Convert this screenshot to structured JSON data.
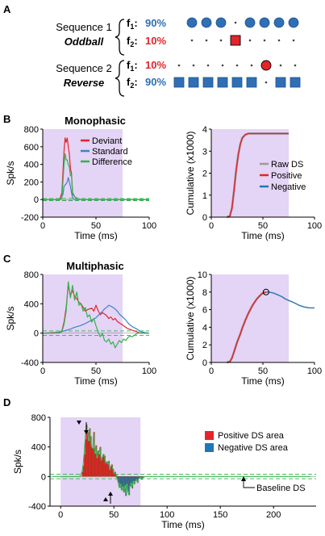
{
  "panels": {
    "a": "A",
    "b": "B",
    "c": "C",
    "d": "D"
  },
  "schematic": {
    "seq1_label": "Sequence 1",
    "seq1_name": "Oddball",
    "seq2_label": "Sequence 2",
    "seq2_name": "Reverse",
    "f1": "f",
    "f1_sub": "1",
    "f2": "f",
    "f2_sub": "2",
    "seq1_f1_pct": "90%",
    "seq1_f2_pct": "10%",
    "seq2_f1_pct": "10%",
    "seq2_f2_pct": "90%",
    "blue": "#2f6fb5",
    "red": "#e3242b",
    "seq1_f1_pattern": [
      "o",
      "o",
      "o",
      "_",
      "o",
      "o",
      "o",
      "o"
    ],
    "seq1_f2_pattern": [
      "_",
      "_",
      "_",
      "X",
      "_",
      "_",
      "_",
      "_"
    ],
    "seq2_f1_pattern": [
      "_",
      "_",
      "_",
      "_",
      "_",
      "_",
      "O",
      "_",
      "_"
    ],
    "seq2_f2_pattern": [
      "S",
      "S",
      "S",
      "S",
      "S",
      "S",
      "_",
      "S",
      "S"
    ]
  },
  "colors": {
    "shade": "#e4d4f6",
    "deviant": "#e3242b",
    "standard": "#3d83c6",
    "difference": "#33b24a",
    "raw": "#9b9b9b",
    "positive_area": "#e3242b",
    "negative_area": "#1f78b4",
    "bar_outline": "#7a3b00",
    "baseline": "#33b24a"
  },
  "chart_data": [
    {
      "id": "b-left",
      "type": "line",
      "title": "Monophasic",
      "xlabel": "Time (ms)",
      "ylabel": "Spk/s",
      "xlim": [
        0,
        100
      ],
      "ylim": [
        -200,
        800
      ],
      "xticks": [
        "0",
        "50",
        "100"
      ],
      "yticks": [
        "-200",
        "0",
        "200",
        "400",
        "600",
        "800"
      ],
      "shade": [
        0,
        75
      ],
      "baseline_dashed": [
        -12,
        12
      ],
      "legend": [
        "Deviant",
        "Standard",
        "Difference"
      ],
      "legend_position": "top-right",
      "series": [
        {
          "name": "Deviant",
          "x": [
            0,
            16,
            18,
            20,
            21,
            22,
            23,
            24,
            25,
            26,
            27,
            28,
            30,
            33,
            36,
            40,
            45,
            100
          ],
          "y": [
            0,
            0,
            80,
            550,
            700,
            650,
            700,
            600,
            520,
            350,
            300,
            80,
            30,
            10,
            0,
            0,
            0,
            0
          ]
        },
        {
          "name": "Standard",
          "x": [
            0,
            17,
            19,
            20,
            22,
            23,
            24,
            25,
            26,
            27,
            28,
            30,
            35,
            100
          ],
          "y": [
            0,
            0,
            60,
            150,
            180,
            200,
            250,
            200,
            150,
            80,
            20,
            0,
            0,
            0
          ]
        },
        {
          "name": "Difference",
          "x": [
            0,
            16,
            18,
            20,
            21,
            22,
            23,
            24,
            25,
            26,
            27,
            28,
            30,
            33,
            36,
            40,
            100
          ],
          "y": [
            0,
            0,
            20,
            400,
            520,
            450,
            450,
            400,
            370,
            270,
            280,
            60,
            30,
            10,
            0,
            0,
            0
          ]
        }
      ]
    },
    {
      "id": "b-right",
      "type": "line",
      "title": "",
      "xlabel": "Time (ms)",
      "ylabel": "Cumulative (x1000)",
      "xlim": [
        0,
        100
      ],
      "ylim": [
        0,
        4
      ],
      "xticks": [
        "0",
        "50",
        "100"
      ],
      "yticks": [
        "0",
        "1",
        "2",
        "3",
        "4"
      ],
      "shade": [
        0,
        75
      ],
      "legend": [
        "Raw DS",
        "Positive",
        "Negative"
      ],
      "legend_position": "middle-right",
      "series": [
        {
          "name": "Raw DS",
          "x": [
            15,
            18,
            20,
            22,
            24,
            26,
            28,
            30,
            33,
            36,
            40,
            75
          ],
          "y": [
            0,
            0.05,
            0.4,
            1.2,
            2.1,
            2.8,
            3.3,
            3.6,
            3.75,
            3.8,
            3.8,
            3.8
          ]
        },
        {
          "name": "Positive",
          "x": [
            15,
            18,
            20,
            22,
            24,
            26,
            28,
            30,
            33,
            36,
            40,
            75
          ],
          "y": [
            0,
            0.05,
            0.4,
            1.2,
            2.1,
            2.8,
            3.3,
            3.6,
            3.75,
            3.8,
            3.8,
            3.8
          ]
        }
      ]
    },
    {
      "id": "c-left",
      "type": "line",
      "title": "Multiphasic",
      "xlabel": "Time (ms)",
      "ylabel": "Spk/s",
      "xlim": [
        0,
        100
      ],
      "ylim": [
        -400,
        800
      ],
      "xticks": [
        "0",
        "50",
        "100"
      ],
      "yticks": [
        "-400",
        "0",
        "400",
        "800"
      ],
      "shade": [
        0,
        75
      ],
      "baseline_dashed": [
        -30,
        30
      ],
      "legend": [],
      "legend_position": "",
      "series": [
        {
          "name": "Deviant",
          "x": [
            0,
            15,
            18,
            20,
            22,
            24,
            26,
            28,
            30,
            32,
            34,
            36,
            38,
            40,
            42,
            44,
            46,
            48,
            50,
            52,
            54,
            56,
            58,
            60,
            62,
            64,
            66,
            68,
            70,
            72,
            74,
            76,
            78,
            80,
            82,
            84,
            86,
            88,
            90,
            92,
            95,
            100
          ],
          "y": [
            0,
            10,
            30,
            150,
            350,
            650,
            520,
            580,
            500,
            470,
            420,
            400,
            350,
            300,
            320,
            330,
            340,
            300,
            380,
            310,
            250,
            280,
            260,
            240,
            200,
            220,
            180,
            200,
            160,
            140,
            120,
            100,
            80,
            60,
            50,
            40,
            30,
            20,
            10,
            0,
            0,
            0
          ]
        },
        {
          "name": "Standard",
          "x": [
            0,
            10,
            15,
            20,
            25,
            30,
            35,
            40,
            45,
            50,
            55,
            58,
            60,
            62,
            65,
            68,
            70,
            72,
            75,
            78,
            80,
            82,
            85,
            88,
            90,
            92,
            95,
            100
          ],
          "y": [
            0,
            0,
            10,
            30,
            50,
            80,
            100,
            130,
            170,
            210,
            280,
            330,
            350,
            380,
            360,
            330,
            300,
            260,
            220,
            180,
            140,
            110,
            80,
            60,
            40,
            20,
            10,
            0
          ]
        },
        {
          "name": "Difference",
          "x": [
            0,
            15,
            18,
            20,
            22,
            24,
            26,
            28,
            30,
            32,
            34,
            36,
            38,
            40,
            42,
            44,
            46,
            48,
            50,
            52,
            54,
            56,
            58,
            60,
            62,
            64,
            66,
            68,
            70,
            72,
            74,
            76,
            78,
            80,
            82,
            84,
            86,
            88,
            90,
            92,
            95,
            100
          ],
          "y": [
            0,
            0,
            20,
            120,
            300,
            700,
            480,
            650,
            450,
            560,
            380,
            400,
            300,
            350,
            220,
            250,
            150,
            200,
            100,
            20,
            -50,
            0,
            -100,
            -120,
            -80,
            -150,
            -120,
            -200,
            -150,
            -100,
            -130,
            -80,
            -100,
            -60,
            -40,
            -50,
            -30,
            -10,
            0,
            0,
            0,
            0
          ]
        }
      ]
    },
    {
      "id": "c-right",
      "type": "line",
      "title": "",
      "xlabel": "Time (ms)",
      "ylabel": "Cumulative (x1000)",
      "xlim": [
        0,
        100
      ],
      "ylim": [
        0,
        10
      ],
      "xticks": [
        "0",
        "50",
        "100"
      ],
      "yticks": [
        "0",
        "2",
        "4",
        "6",
        "8",
        "10"
      ],
      "shade": [
        0,
        75
      ],
      "marker": [
        53,
        8.0
      ],
      "legend": [],
      "legend_position": "",
      "series": [
        {
          "name": "Raw DS",
          "x": [
            15,
            18,
            20,
            22,
            25,
            28,
            30,
            33,
            36,
            40,
            44,
            48,
            50,
            53
          ],
          "y": [
            0,
            0.1,
            0.5,
            1.2,
            2.3,
            3.2,
            3.9,
            4.8,
            5.6,
            6.5,
            7.2,
            7.7,
            7.9,
            8.0
          ]
        },
        {
          "name": "Positive",
          "x": [
            15,
            18,
            20,
            22,
            25,
            28,
            30,
            33,
            36,
            40,
            44,
            48,
            50,
            53
          ],
          "y": [
            0,
            0.1,
            0.5,
            1.2,
            2.3,
            3.2,
            3.9,
            4.8,
            5.6,
            6.5,
            7.2,
            7.7,
            7.9,
            8.0
          ]
        },
        {
          "name": "Negative",
          "x": [
            53,
            56,
            60,
            64,
            68,
            72,
            76,
            80,
            85,
            90,
            95,
            100
          ],
          "y": [
            8.0,
            8.0,
            7.9,
            7.7,
            7.5,
            7.2,
            7.0,
            6.8,
            6.5,
            6.3,
            6.2,
            6.2
          ]
        }
      ]
    },
    {
      "id": "d",
      "type": "bar",
      "title": "",
      "xlabel": "Time (ms)",
      "ylabel": "Spk/s",
      "xlim": [
        -10,
        240
      ],
      "ylim": [
        -400,
        800
      ],
      "xticks": [
        "0",
        "50",
        "100",
        "150",
        "200"
      ],
      "yticks": [
        "-400",
        "0",
        "400",
        "800"
      ],
      "shade": [
        0,
        75
      ],
      "baseline_dashed": [
        -30,
        30
      ],
      "legend": [
        "Positive DS area",
        "Negative DS area"
      ],
      "legend_position": "top-right",
      "annotation": "Baseline DS",
      "bar_width_ms": 1,
      "bars_x": [
        20,
        21,
        22,
        23,
        24,
        25,
        26,
        27,
        28,
        29,
        30,
        31,
        32,
        33,
        34,
        35,
        36,
        37,
        38,
        39,
        40,
        41,
        42,
        43,
        44,
        45,
        46,
        47,
        48,
        49,
        50,
        51,
        52,
        53,
        54,
        55,
        56,
        57,
        58,
        59,
        60,
        61,
        62,
        63,
        64,
        65,
        66,
        67,
        68,
        69,
        70,
        71,
        72,
        73,
        74,
        75,
        76,
        77
      ],
      "bars_y": [
        60,
        150,
        300,
        500,
        700,
        600,
        480,
        650,
        540,
        400,
        380,
        600,
        310,
        420,
        250,
        350,
        300,
        400,
        220,
        260,
        300,
        280,
        180,
        200,
        170,
        210,
        90,
        140,
        160,
        100,
        40,
        60,
        20,
        -30,
        -80,
        -150,
        -100,
        -180,
        -140,
        -210,
        -120,
        -260,
        -100,
        -200,
        -250,
        -130,
        -90,
        -160,
        -60,
        -100,
        -60,
        -40,
        -80,
        -30,
        -20,
        -10,
        -40,
        -15
      ]
    }
  ]
}
